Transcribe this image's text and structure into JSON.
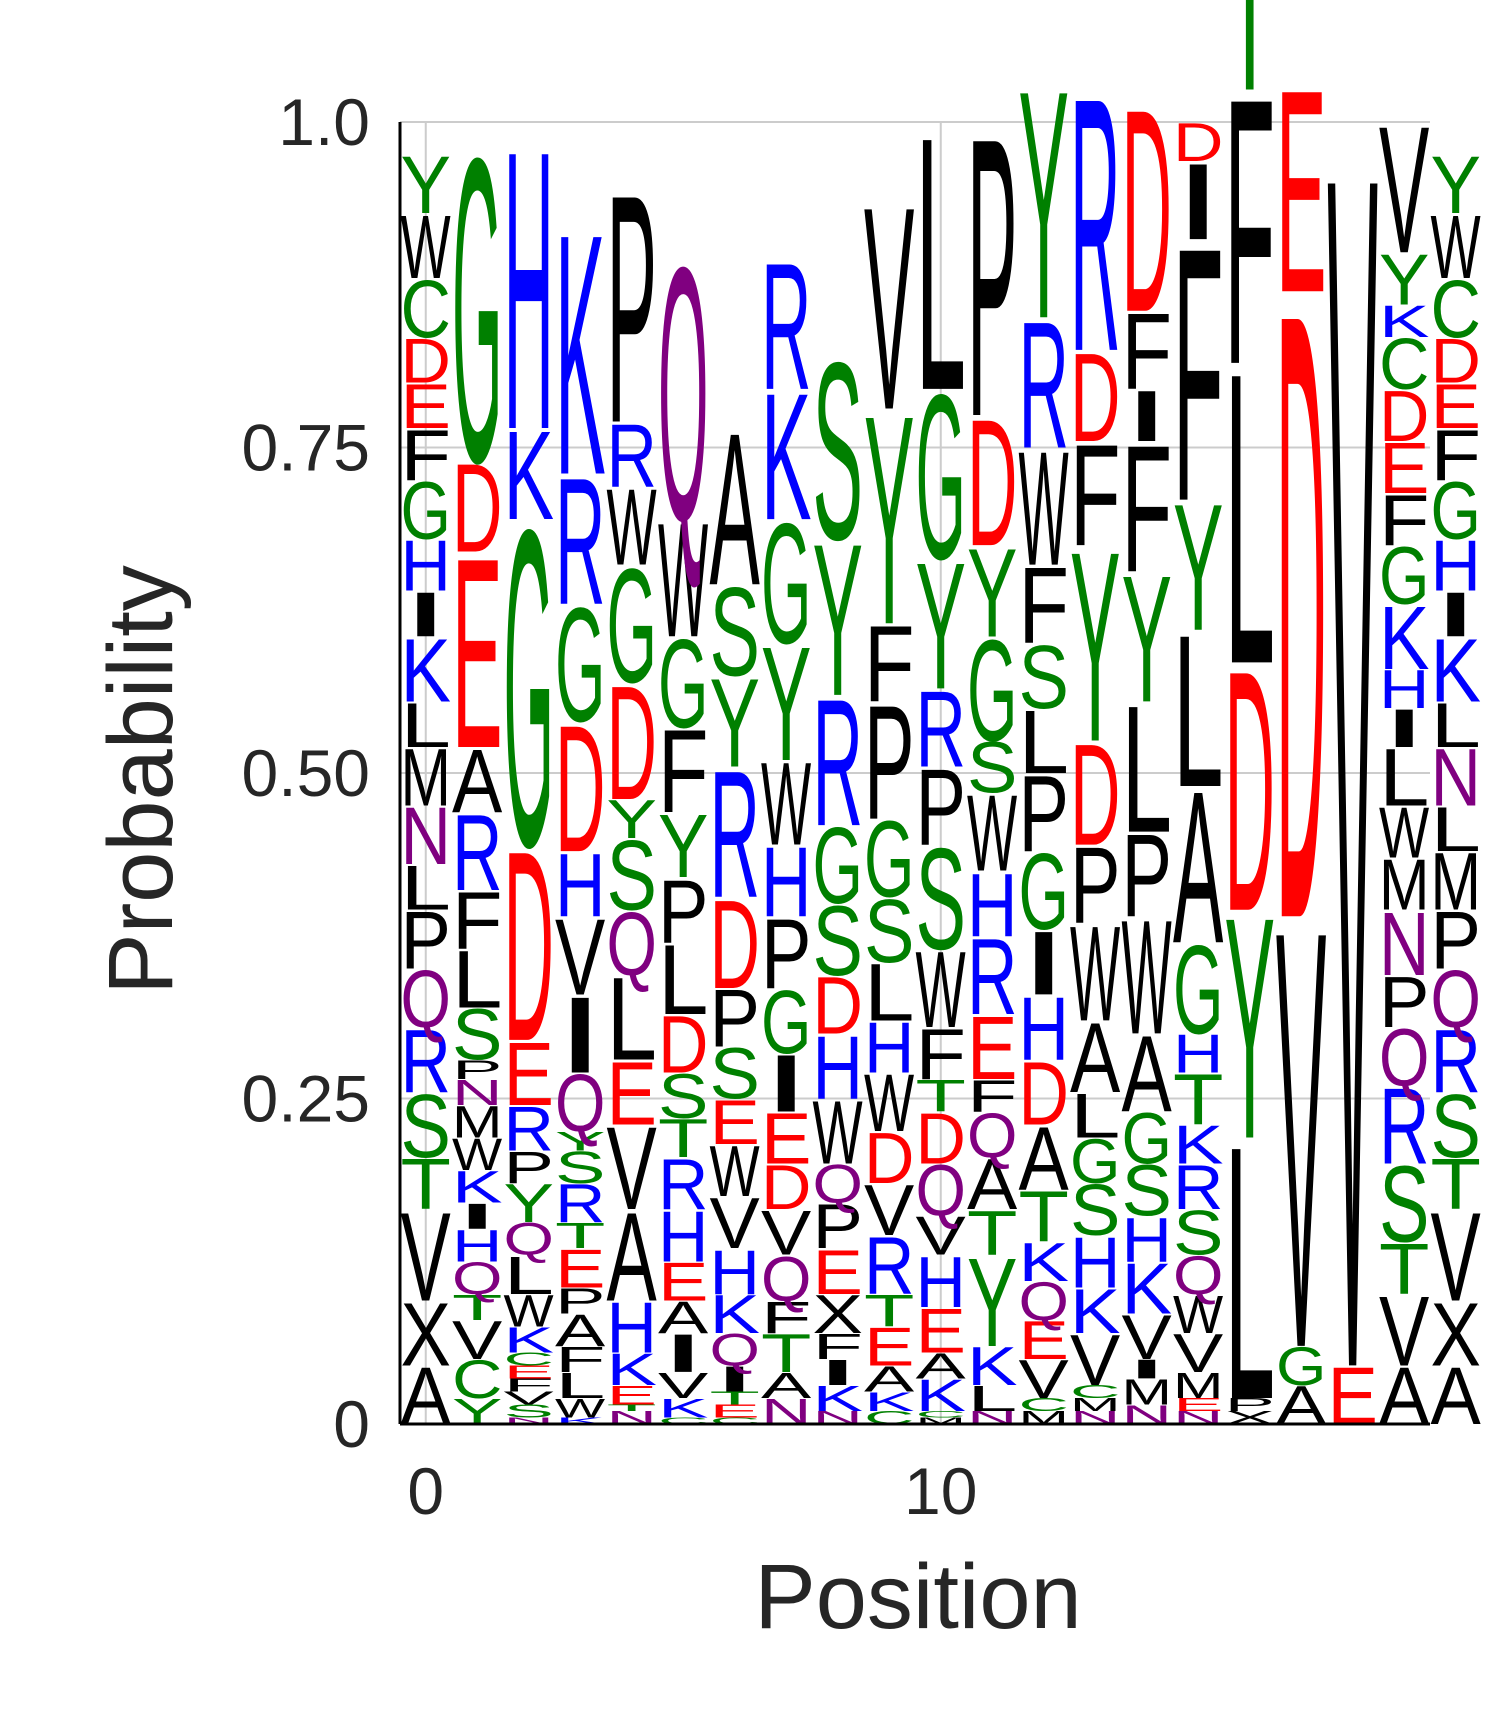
{
  "chart_data": {
    "type": "sequence-logo",
    "xlabel": "Position",
    "ylabel": "Probability",
    "ylim": [
      0,
      1
    ],
    "xlim": [
      -0.5,
      19.5
    ],
    "x_ticks": [
      {
        "value": 0,
        "label": "0"
      },
      {
        "value": 10,
        "label": "10"
      }
    ],
    "y_ticks": [
      {
        "value": 0,
        "label": "0"
      },
      {
        "value": 0.25,
        "label": "0.25"
      },
      {
        "value": 0.5,
        "label": "0.50"
      },
      {
        "value": 0.75,
        "label": "0.75"
      },
      {
        "value": 1.0,
        "label": "1.0"
      }
    ],
    "grid": true,
    "colors": {
      "A": "#000000",
      "F": "#000000",
      "I": "#000000",
      "L": "#000000",
      "M": "#000000",
      "P": "#000000",
      "V": "#000000",
      "W": "#000000",
      "C": "#008000",
      "G": "#008000",
      "S": "#008000",
      "T": "#008000",
      "Y": "#008000",
      "D": "#ff0000",
      "E": "#ff0000",
      "H": "#0000ff",
      "K": "#0000ff",
      "R": "#0000ff",
      "N": "#800080",
      "Q": "#800080"
    },
    "positions": [
      [
        [
          "A",
          0.045
        ],
        [
          "X",
          0.05
        ],
        [
          "V",
          0.07
        ],
        [
          "T",
          0.04
        ],
        [
          "S",
          0.05
        ],
        [
          "R",
          0.05
        ],
        [
          "Q",
          0.045
        ],
        [
          "P",
          0.045
        ],
        [
          "L",
          0.035
        ],
        [
          "N",
          0.045
        ],
        [
          "M",
          0.045
        ],
        [
          "L",
          0.035
        ],
        [
          "K",
          0.05
        ],
        [
          "I",
          0.035
        ],
        [
          "H",
          0.04
        ],
        [
          "G",
          0.045
        ],
        [
          "F",
          0.04
        ],
        [
          "E",
          0.035
        ],
        [
          "D",
          0.035
        ],
        [
          "C",
          0.045
        ],
        [
          "W",
          0.05
        ],
        [
          "Y",
          0.045
        ]
      ],
      [
        [
          "Y",
          0.02
        ],
        [
          "C",
          0.03
        ],
        [
          "V",
          0.03
        ],
        [
          "T",
          0.02
        ],
        [
          "Q",
          0.025
        ],
        [
          "H",
          0.025
        ],
        [
          "I",
          0.02
        ],
        [
          "K",
          0.025
        ],
        [
          "W",
          0.025
        ],
        [
          "M",
          0.025
        ],
        [
          "N",
          0.02
        ],
        [
          "P",
          0.015
        ],
        [
          "S",
          0.04
        ],
        [
          "L",
          0.045
        ],
        [
          "F",
          0.045
        ],
        [
          "R",
          0.06
        ],
        [
          "A",
          0.05
        ],
        [
          "E",
          0.15
        ],
        [
          "D",
          0.07
        ],
        [
          "G",
          0.24
        ]
      ],
      [
        [
          "N",
          0.005
        ],
        [
          "S",
          0.01
        ],
        [
          "V",
          0.01
        ],
        [
          "F",
          0.01
        ],
        [
          "E",
          0.01
        ],
        [
          "C",
          0.01
        ],
        [
          "K",
          0.02
        ],
        [
          "W",
          0.025
        ],
        [
          "L",
          0.03
        ],
        [
          "Q",
          0.025
        ],
        [
          "Y",
          0.03
        ],
        [
          "P",
          0.025
        ],
        [
          "R",
          0.035
        ],
        [
          "E",
          0.05
        ],
        [
          "D",
          0.15
        ],
        [
          "G",
          0.25
        ],
        [
          "K",
          0.07
        ],
        [
          "H",
          0.22
        ]
      ],
      [
        [
          "K",
          0.005
        ],
        [
          "W",
          0.015
        ],
        [
          "L",
          0.02
        ],
        [
          "F",
          0.02
        ],
        [
          "A",
          0.025
        ],
        [
          "P",
          0.02
        ],
        [
          "E",
          0.03
        ],
        [
          "T",
          0.02
        ],
        [
          "R",
          0.03
        ],
        [
          "S",
          0.025
        ],
        [
          "Y",
          0.015
        ],
        [
          "Q",
          0.045
        ],
        [
          "I",
          0.06
        ],
        [
          "V",
          0.06
        ],
        [
          "H",
          0.05
        ],
        [
          "D",
          0.1
        ],
        [
          "G",
          0.09
        ],
        [
          "R",
          0.1
        ],
        [
          "K",
          0.19
        ]
      ],
      [
        [
          "N",
          0.01
        ],
        [
          "T",
          0.005
        ],
        [
          "E",
          0.015
        ],
        [
          "K",
          0.025
        ],
        [
          "H",
          0.04
        ],
        [
          "A",
          0.07
        ],
        [
          "V",
          0.065
        ],
        [
          "E",
          0.05
        ],
        [
          "L",
          0.065
        ],
        [
          "Q",
          0.05
        ],
        [
          "S",
          0.055
        ],
        [
          "Y",
          0.03
        ],
        [
          "D",
          0.09
        ],
        [
          "G",
          0.09
        ],
        [
          "W",
          0.06
        ],
        [
          "R",
          0.05
        ],
        [
          "P",
          0.18
        ]
      ],
      [
        [
          "C",
          0.005
        ],
        [
          "K",
          0.015
        ],
        [
          "V",
          0.02
        ],
        [
          "I",
          0.03
        ],
        [
          "A",
          0.025
        ],
        [
          "E",
          0.03
        ],
        [
          "H",
          0.04
        ],
        [
          "R",
          0.04
        ],
        [
          "T",
          0.03
        ],
        [
          "S",
          0.035
        ],
        [
          "D",
          0.045
        ],
        [
          "L",
          0.055
        ],
        [
          "P",
          0.05
        ],
        [
          "Y",
          0.05
        ],
        [
          "F",
          0.065
        ],
        [
          "G",
          0.07
        ],
        [
          "W",
          0.09
        ],
        [
          "Q",
          0.2
        ]
      ],
      [
        [
          "C",
          0.005
        ],
        [
          "E",
          0.01
        ],
        [
          "T",
          0.01
        ],
        [
          "I",
          0.02
        ],
        [
          "Q",
          0.025
        ],
        [
          "K",
          0.03
        ],
        [
          "H",
          0.035
        ],
        [
          "V",
          0.04
        ],
        [
          "W",
          0.04
        ],
        [
          "E",
          0.035
        ],
        [
          "S",
          0.04
        ],
        [
          "P",
          0.045
        ],
        [
          "D",
          0.07
        ],
        [
          "R",
          0.1
        ],
        [
          "Y",
          0.07
        ],
        [
          "S",
          0.07
        ],
        [
          "A",
          0.12
        ]
      ],
      [
        [
          "N",
          0.02
        ],
        [
          "A",
          0.02
        ],
        [
          "T",
          0.03
        ],
        [
          "F",
          0.025
        ],
        [
          "Q",
          0.035
        ],
        [
          "V",
          0.035
        ],
        [
          "D",
          0.035
        ],
        [
          "E",
          0.04
        ],
        [
          "I",
          0.045
        ],
        [
          "G",
          0.05
        ],
        [
          "P",
          0.055
        ],
        [
          "H",
          0.055
        ],
        [
          "W",
          0.065
        ],
        [
          "Y",
          0.09
        ],
        [
          "G",
          0.095
        ],
        [
          "K",
          0.1
        ],
        [
          "R",
          0.1
        ]
      ],
      [
        [
          "N",
          0.01
        ],
        [
          "K",
          0.02
        ],
        [
          "I",
          0.02
        ],
        [
          "F",
          0.02
        ],
        [
          "X",
          0.03
        ],
        [
          "E",
          0.035
        ],
        [
          "P",
          0.035
        ],
        [
          "Q",
          0.03
        ],
        [
          "W",
          0.05
        ],
        [
          "H",
          0.05
        ],
        [
          "D",
          0.045
        ],
        [
          "S",
          0.055
        ],
        [
          "G",
          0.06
        ],
        [
          "R",
          0.1
        ],
        [
          "Y",
          0.12
        ],
        [
          "S",
          0.14
        ]
      ],
      [
        [
          "C",
          0.01
        ],
        [
          "K",
          0.015
        ],
        [
          "A",
          0.02
        ],
        [
          "E",
          0.03
        ],
        [
          "T",
          0.025
        ],
        [
          "R",
          0.045
        ],
        [
          "V",
          0.04
        ],
        [
          "D",
          0.04
        ],
        [
          "W",
          0.045
        ],
        [
          "H",
          0.04
        ],
        [
          "L",
          0.045
        ],
        [
          "S",
          0.05
        ],
        [
          "G",
          0.06
        ],
        [
          "P",
          0.09
        ],
        [
          "F",
          0.06
        ],
        [
          "Y",
          0.165
        ],
        [
          "V",
          0.16
        ]
      ],
      [
        [
          "M",
          0.005
        ],
        [
          "C",
          0.005
        ],
        [
          "K",
          0.025
        ],
        [
          "A",
          0.02
        ],
        [
          "E",
          0.035
        ],
        [
          "H",
          0.04
        ],
        [
          "V",
          0.03
        ],
        [
          "Q",
          0.04
        ],
        [
          "D",
          0.04
        ],
        [
          "T",
          0.025
        ],
        [
          "F",
          0.04
        ],
        [
          "W",
          0.06
        ],
        [
          "S",
          0.08
        ],
        [
          "P",
          0.06
        ],
        [
          "R",
          0.06
        ],
        [
          "Y",
          0.1
        ],
        [
          "G",
          0.13
        ],
        [
          "L",
          0.2
        ]
      ],
      [
        [
          "N",
          0.01
        ],
        [
          "L",
          0.02
        ],
        [
          "K",
          0.03
        ],
        [
          "Y",
          0.07
        ],
        [
          "T",
          0.035
        ],
        [
          "A",
          0.04
        ],
        [
          "Q",
          0.035
        ],
        [
          "F",
          0.025
        ],
        [
          "E",
          0.05
        ],
        [
          "R",
          0.06
        ],
        [
          "H",
          0.05
        ],
        [
          "W",
          0.06
        ],
        [
          "S",
          0.04
        ],
        [
          "G",
          0.08
        ],
        [
          "Y",
          0.07
        ],
        [
          "D",
          0.1
        ],
        [
          "P",
          0.22
        ]
      ],
      [
        [
          "M",
          0.01
        ],
        [
          "C",
          0.01
        ],
        [
          "V",
          0.03
        ],
        [
          "E",
          0.03
        ],
        [
          "Q",
          0.03
        ],
        [
          "K",
          0.03
        ],
        [
          "T",
          0.04
        ],
        [
          "A",
          0.05
        ],
        [
          "D",
          0.05
        ],
        [
          "H",
          0.05
        ],
        [
          "I",
          0.05
        ],
        [
          "G",
          0.06
        ],
        [
          "P",
          0.06
        ],
        [
          "L",
          0.05
        ],
        [
          "S",
          0.05
        ],
        [
          "F",
          0.06
        ],
        [
          "W",
          0.09
        ],
        [
          "R",
          0.1
        ],
        [
          "Y",
          0.18
        ]
      ],
      [
        [
          "N",
          0.01
        ],
        [
          "M",
          0.01
        ],
        [
          "C",
          0.01
        ],
        [
          "V",
          0.04
        ],
        [
          "K",
          0.035
        ],
        [
          "H",
          0.04
        ],
        [
          "S",
          0.04
        ],
        [
          "G",
          0.035
        ],
        [
          "L",
          0.035
        ],
        [
          "A",
          0.055
        ],
        [
          "W",
          0.075
        ],
        [
          "P",
          0.06
        ],
        [
          "D",
          0.08
        ],
        [
          "Y",
          0.15
        ],
        [
          "F",
          0.08
        ],
        [
          "D",
          0.07
        ],
        [
          "R",
          0.2
        ]
      ],
      [
        [
          "N",
          0.015
        ],
        [
          "M",
          0.02
        ],
        [
          "I",
          0.015
        ],
        [
          "V",
          0.035
        ],
        [
          "K",
          0.04
        ],
        [
          "H",
          0.035
        ],
        [
          "S",
          0.04
        ],
        [
          "G",
          0.04
        ],
        [
          "A",
          0.06
        ],
        [
          "W",
          0.09
        ],
        [
          "P",
          0.065
        ],
        [
          "L",
          0.1
        ],
        [
          "Y",
          0.1
        ],
        [
          "F",
          0.1
        ],
        [
          "I",
          0.04
        ],
        [
          "F",
          0.06
        ],
        [
          "D",
          0.16
        ]
      ],
      [
        [
          "N",
          0.01
        ],
        [
          "E",
          0.01
        ],
        [
          "M",
          0.02
        ],
        [
          "V",
          0.03
        ],
        [
          "W",
          0.03
        ],
        [
          "Q",
          0.03
        ],
        [
          "S",
          0.035
        ],
        [
          "R",
          0.035
        ],
        [
          "K",
          0.03
        ],
        [
          "T",
          0.04
        ],
        [
          "H",
          0.03
        ],
        [
          "G",
          0.07
        ],
        [
          "A",
          0.12
        ],
        [
          "L",
          0.12
        ],
        [
          "Y",
          0.1
        ],
        [
          "F",
          0.2
        ],
        [
          "I",
          0.06
        ],
        [
          "D",
          0.03
        ]
      ],
      [
        [
          "X",
          0.01
        ],
        [
          "P",
          0.01
        ],
        [
          "L",
          0.2
        ],
        [
          "Y",
          0.175
        ],
        [
          "D",
          0.19
        ],
        [
          "L",
          0.23
        ],
        [
          "F",
          0.21
        ],
        [
          "T",
          0.1
        ]
      ],
      [
        [
          "A",
          0.03
        ],
        [
          "G",
          0.03
        ],
        [
          "V",
          0.33
        ],
        [
          "D",
          0.48
        ],
        [
          "E",
          0.16
        ]
      ],
      [
        [
          "E",
          0.045
        ],
        [
          "V",
          0.95
        ]
      ],
      [
        [
          "A",
          0.045
        ],
        [
          "V",
          0.055
        ],
        [
          "T",
          0.04
        ],
        [
          "S",
          0.06
        ],
        [
          "R",
          0.06
        ],
        [
          "Q",
          0.045
        ],
        [
          "P",
          0.04
        ],
        [
          "N",
          0.05
        ],
        [
          "M",
          0.04
        ],
        [
          "W",
          0.04
        ],
        [
          "L",
          0.045
        ],
        [
          "I",
          0.03
        ],
        [
          "H",
          0.03
        ],
        [
          "K",
          0.05
        ],
        [
          "G",
          0.045
        ],
        [
          "F",
          0.04
        ],
        [
          "E",
          0.04
        ],
        [
          "D",
          0.04
        ],
        [
          "C",
          0.04
        ],
        [
          "K",
          0.025
        ],
        [
          "Y",
          0.04
        ],
        [
          "V",
          0.1
        ]
      ],
      [
        [
          "A",
          0.045
        ],
        [
          "X",
          0.05
        ],
        [
          "V",
          0.07
        ],
        [
          "T",
          0.04
        ],
        [
          "S",
          0.05
        ],
        [
          "R",
          0.05
        ],
        [
          "Q",
          0.045
        ],
        [
          "P",
          0.045
        ],
        [
          "M",
          0.045
        ],
        [
          "L",
          0.035
        ],
        [
          "N",
          0.045
        ],
        [
          "L",
          0.035
        ],
        [
          "K",
          0.05
        ],
        [
          "I",
          0.035
        ],
        [
          "H",
          0.04
        ],
        [
          "G",
          0.045
        ],
        [
          "F",
          0.04
        ],
        [
          "E",
          0.035
        ],
        [
          "D",
          0.035
        ],
        [
          "C",
          0.045
        ],
        [
          "W",
          0.05
        ],
        [
          "Y",
          0.045
        ]
      ]
    ]
  }
}
